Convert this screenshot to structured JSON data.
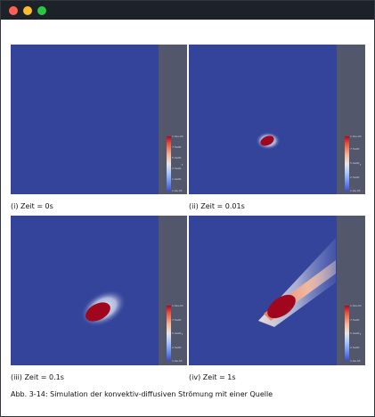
{
  "window": {
    "controls": [
      "close",
      "minimize",
      "maximize"
    ],
    "control_colors": {
      "close": "#ff5f57",
      "minimize": "#febc2e",
      "maximize": "#28c840"
    }
  },
  "figure": {
    "colors": {
      "field_background": "#35449b",
      "panel_frame": "#52576b",
      "hot": "#a1061f"
    },
    "colormap": "coolwarm",
    "panels": [
      {
        "caption": "(i) Zeit = 0s",
        "colorbar_ticks": [
          "1.0e+01",
          "7.5e00",
          "5.0e00",
          "2.5e00",
          "1.0e00",
          "1.0e-03"
        ],
        "colorbar_title": "f"
      },
      {
        "caption": "(ii) Zeit = 0.01s",
        "colorbar_ticks": [
          "1.0e+01",
          "7.5e00",
          "5.0e00",
          "2.5e00",
          "1.0e-03"
        ],
        "colorbar_title": "f"
      },
      {
        "caption": "(iii) Zeit = 0.1s",
        "colorbar_ticks": [
          "1.0e+01",
          "7.5e00",
          "5.0e00",
          "2.5e00",
          "1.0e-03"
        ],
        "colorbar_title": "f"
      },
      {
        "caption": "(iv) Zeit = 1s",
        "colorbar_ticks": [
          "1.0e+01",
          "7.5e00",
          "5.0e00",
          "2.5e00",
          "1.0e-03"
        ],
        "colorbar_title": "f"
      }
    ],
    "caption": "Abb. 3-14: Simulation der konvektiv-diffusiven Strömung mit einer Quelle"
  }
}
